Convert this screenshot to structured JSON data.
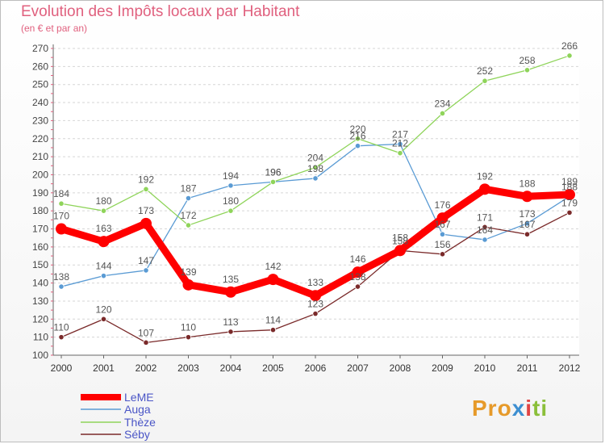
{
  "chart_data": {
    "type": "line",
    "title": "Evolution des Impôts locaux par Habitant",
    "subtitle": "(en € et par an)",
    "xlabel": "",
    "ylabel": "",
    "x": [
      "2000",
      "2001",
      "2002",
      "2003",
      "2004",
      "2005",
      "2006",
      "2007",
      "2008",
      "2009",
      "2010",
      "2011",
      "2012"
    ],
    "ylim": [
      100,
      270
    ],
    "yticks": [
      100,
      110,
      120,
      130,
      140,
      150,
      160,
      170,
      180,
      190,
      200,
      210,
      220,
      230,
      240,
      250,
      260,
      270
    ],
    "grid": true,
    "legend": "bottom-left",
    "series": [
      {
        "name": "LeME",
        "color": "#ff0000",
        "values": [
          170,
          163,
          173,
          139,
          135,
          142,
          133,
          146,
          158,
          176,
          192,
          188,
          189
        ]
      },
      {
        "name": "Auga",
        "color": "#5a9bd4",
        "values": [
          138,
          144,
          147,
          187,
          194,
          196,
          198,
          216,
          217,
          167,
          164,
          173,
          188
        ]
      },
      {
        "name": "Thèze",
        "color": "#8fd45a",
        "values": [
          184,
          180,
          192,
          172,
          180,
          196,
          204,
          220,
          212,
          234,
          252,
          258,
          266
        ]
      },
      {
        "name": "Séby",
        "color": "#7a2a2a",
        "values": [
          110,
          120,
          107,
          110,
          113,
          114,
          123,
          138,
          158,
          156,
          171,
          167,
          179
        ]
      }
    ]
  },
  "logo": {
    "p1": "Pro",
    "p2": "x",
    "p3": "i",
    "p4": "ti"
  }
}
